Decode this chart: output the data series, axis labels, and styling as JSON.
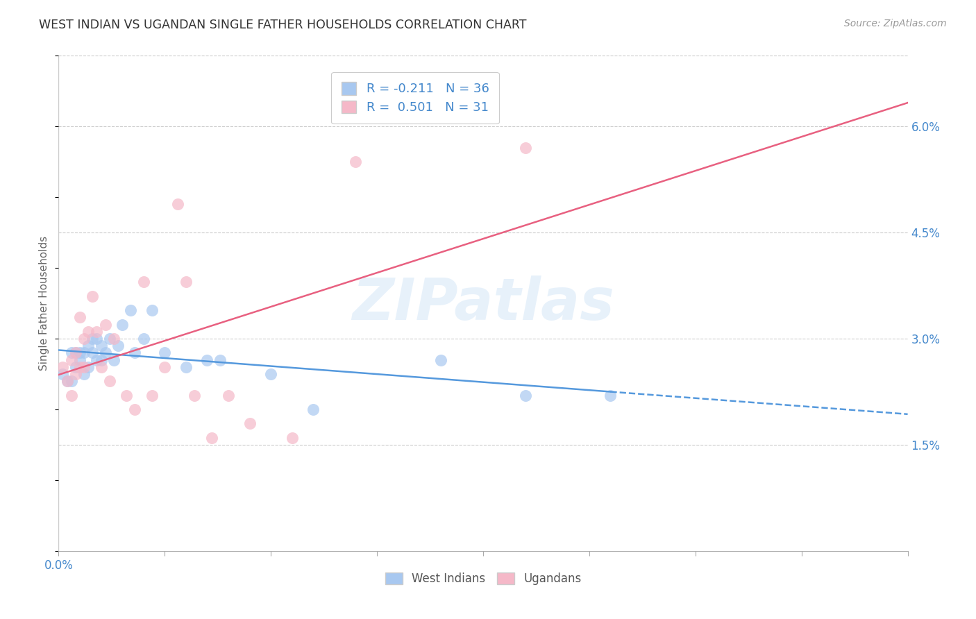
{
  "title": "WEST INDIAN VS UGANDAN SINGLE FATHER HOUSEHOLDS CORRELATION CHART",
  "source": "Source: ZipAtlas.com",
  "ylabel": "Single Father Households",
  "xlim": [
    0.0,
    0.2
  ],
  "ylim": [
    0.0,
    0.07
  ],
  "xticks": [
    0.0,
    0.025,
    0.05,
    0.075,
    0.1,
    0.125,
    0.15,
    0.175,
    0.2
  ],
  "xtick_labels_show": {
    "0.0": "0.0%"
  },
  "ytick_vals": [
    0.015,
    0.03,
    0.045,
    0.06
  ],
  "ytick_labels": [
    "1.5%",
    "3.0%",
    "4.5%",
    "6.0%"
  ],
  "legend_color1": "#a8c8f0",
  "legend_color2": "#f5b8c8",
  "scatter_color1": "#a8c8f0",
  "scatter_color2": "#f5b8c8",
  "line_color1": "#5599dd",
  "line_color2": "#e86080",
  "watermark_text": "ZIPatlas",
  "west_indians_x": [
    0.001,
    0.002,
    0.003,
    0.003,
    0.004,
    0.004,
    0.005,
    0.005,
    0.006,
    0.006,
    0.007,
    0.007,
    0.008,
    0.008,
    0.009,
    0.009,
    0.01,
    0.01,
    0.011,
    0.012,
    0.013,
    0.014,
    0.015,
    0.017,
    0.018,
    0.02,
    0.022,
    0.025,
    0.03,
    0.035,
    0.038,
    0.05,
    0.06,
    0.09,
    0.11,
    0.13
  ],
  "west_indians_y": [
    0.025,
    0.024,
    0.028,
    0.024,
    0.028,
    0.026,
    0.027,
    0.028,
    0.025,
    0.028,
    0.026,
    0.029,
    0.028,
    0.03,
    0.027,
    0.03,
    0.027,
    0.029,
    0.028,
    0.03,
    0.027,
    0.029,
    0.032,
    0.034,
    0.028,
    0.03,
    0.034,
    0.028,
    0.026,
    0.027,
    0.027,
    0.025,
    0.02,
    0.027,
    0.022,
    0.022
  ],
  "ugandans_x": [
    0.001,
    0.002,
    0.003,
    0.003,
    0.004,
    0.004,
    0.005,
    0.005,
    0.006,
    0.006,
    0.007,
    0.008,
    0.009,
    0.01,
    0.011,
    0.012,
    0.013,
    0.016,
    0.018,
    0.02,
    0.022,
    0.025,
    0.028,
    0.03,
    0.032,
    0.036,
    0.04,
    0.045,
    0.055,
    0.07,
    0.11
  ],
  "ugandans_y": [
    0.026,
    0.024,
    0.027,
    0.022,
    0.025,
    0.028,
    0.026,
    0.033,
    0.026,
    0.03,
    0.031,
    0.036,
    0.031,
    0.026,
    0.032,
    0.024,
    0.03,
    0.022,
    0.02,
    0.038,
    0.022,
    0.026,
    0.049,
    0.038,
    0.022,
    0.016,
    0.022,
    0.018,
    0.016,
    0.055,
    0.057
  ],
  "background_color": "#ffffff",
  "grid_color": "#cccccc",
  "title_color": "#333333",
  "source_color": "#999999",
  "tick_label_color": "#4488cc"
}
